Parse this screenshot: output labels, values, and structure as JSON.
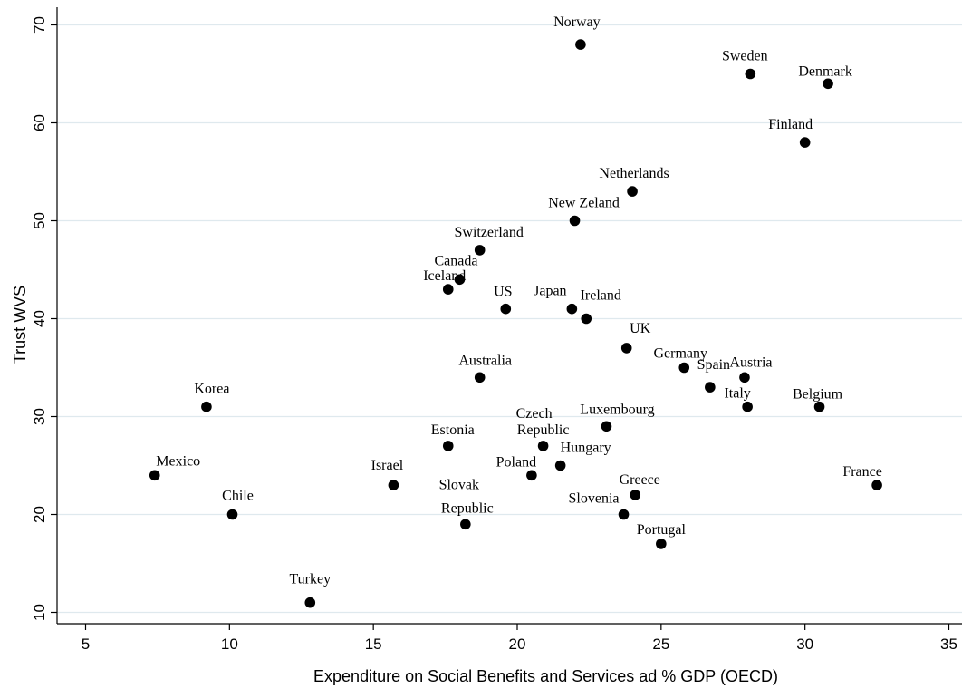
{
  "chart_data": {
    "type": "scatter",
    "title": "",
    "xlabel": "Expenditure on Social Benefits and Services ad % GDP (OECD)",
    "ylabel": "Trust WVS",
    "xlim": [
      5,
      35
    ],
    "ylim": [
      10,
      70
    ],
    "xticks": [
      "5",
      "10",
      "15",
      "20",
      "25",
      "30",
      "35"
    ],
    "yticks": [
      "10",
      "20",
      "30",
      "40",
      "50",
      "60",
      "70"
    ],
    "grid": "horizontal",
    "marker_color": "#000000",
    "gridline_color": "#dfe9ee",
    "points": [
      {
        "label": "Norway",
        "x": 22.2,
        "y": 68
      },
      {
        "label": "Sweden",
        "x": 28.1,
        "y": 65
      },
      {
        "label": "Denmark",
        "x": 30.8,
        "y": 64
      },
      {
        "label": "Finland",
        "x": 30.0,
        "y": 58
      },
      {
        "label": "Netherlands",
        "x": 24.0,
        "y": 53
      },
      {
        "label": "New Zeland",
        "x": 22.0,
        "y": 50
      },
      {
        "label": "Switzerland",
        "x": 18.7,
        "y": 47
      },
      {
        "label": "Canada",
        "x": 18.0,
        "y": 44
      },
      {
        "label": "Iceland",
        "x": 17.6,
        "y": 43
      },
      {
        "label": "US",
        "x": 19.6,
        "y": 41
      },
      {
        "label": "Japan",
        "x": 21.9,
        "y": 41
      },
      {
        "label": "Ireland",
        "x": 22.4,
        "y": 40
      },
      {
        "label": "UK",
        "x": 23.8,
        "y": 37
      },
      {
        "label": "Germany",
        "x": 25.8,
        "y": 35
      },
      {
        "label": "Austria",
        "x": 27.9,
        "y": 34
      },
      {
        "label": "Spain",
        "x": 26.7,
        "y": 33
      },
      {
        "label": "Italy",
        "x": 28.0,
        "y": 31
      },
      {
        "label": "Belgium",
        "x": 30.5,
        "y": 31
      },
      {
        "label": "Australia",
        "x": 18.7,
        "y": 34
      },
      {
        "label": "Korea",
        "x": 9.2,
        "y": 31
      },
      {
        "label": "Czech Republic",
        "x": 20.9,
        "y": 27
      },
      {
        "label": "Luxembourg",
        "x": 23.1,
        "y": 29
      },
      {
        "label": "Estonia",
        "x": 17.6,
        "y": 27
      },
      {
        "label": "Hungary",
        "x": 21.5,
        "y": 25
      },
      {
        "label": "Poland",
        "x": 20.5,
        "y": 24
      },
      {
        "label": "Mexico",
        "x": 7.4,
        "y": 24
      },
      {
        "label": "Israel",
        "x": 15.7,
        "y": 23
      },
      {
        "label": "Greece",
        "x": 24.1,
        "y": 22
      },
      {
        "label": "France",
        "x": 32.5,
        "y": 23
      },
      {
        "label": "Chile",
        "x": 10.1,
        "y": 20
      },
      {
        "label": "Slovak Republic",
        "x": 18.2,
        "y": 19
      },
      {
        "label": "Slovenia",
        "x": 23.7,
        "y": 20
      },
      {
        "label": "Portugal",
        "x": 25.0,
        "y": 17
      },
      {
        "label": "Turkey",
        "x": 12.8,
        "y": 11
      }
    ]
  }
}
